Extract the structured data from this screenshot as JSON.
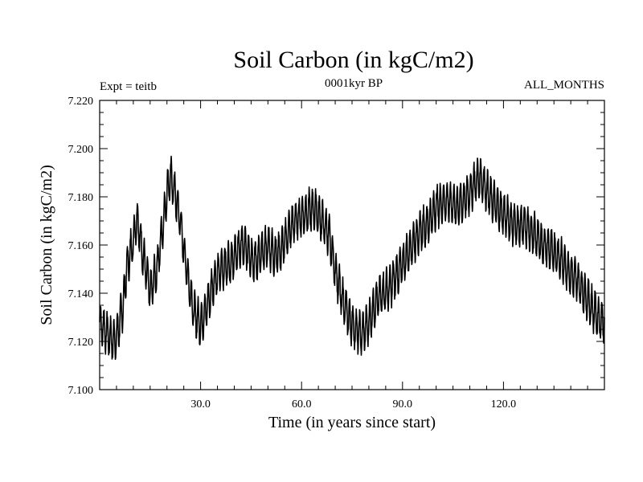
{
  "chart_data": {
    "type": "line",
    "title": "Soil Carbon (in kgC/m2)",
    "subtitle_left": "Expt = teitb",
    "subtitle_center": "0001kyr BP",
    "subtitle_right": "ALL_MONTHS",
    "xlabel": "Time (in years since start)",
    "ylabel": "Soil Carbon (in kgC/m2)",
    "xlim": [
      0,
      150
    ],
    "ylim": [
      7.1,
      7.22
    ],
    "xticks": [
      30,
      60,
      90,
      120
    ],
    "xtick_labels": [
      "30.0",
      "60.0",
      "90.0",
      "120.0"
    ],
    "yticks": [
      7.1,
      7.12,
      7.14,
      7.16,
      7.18,
      7.2,
      7.22
    ],
    "ytick_labels": [
      "7.100",
      "7.120",
      "7.140",
      "7.160",
      "7.180",
      "7.200",
      "7.220"
    ],
    "series": [
      {
        "name": "Soil Carbon",
        "color": "#000000",
        "trend_x": [
          0,
          2,
          4,
          5,
          7,
          8,
          10,
          11,
          13,
          14,
          15,
          17,
          19,
          20,
          21,
          22,
          24,
          25,
          27,
          28,
          30,
          32,
          34,
          36,
          38,
          40,
          42,
          44,
          46,
          48,
          50,
          52,
          54,
          56,
          58,
          60,
          62,
          64,
          66,
          68,
          70,
          72,
          74,
          76,
          78,
          80,
          82,
          84,
          86,
          88,
          90,
          92,
          94,
          96,
          98,
          100,
          102,
          104,
          106,
          108,
          110,
          112,
          113,
          114,
          116,
          118,
          120,
          122,
          124,
          126,
          128,
          130,
          132,
          134,
          136,
          138,
          140,
          142,
          144,
          146,
          148,
          150
        ],
        "trend_y": [
          7.128,
          7.124,
          7.12,
          7.122,
          7.135,
          7.15,
          7.162,
          7.172,
          7.155,
          7.148,
          7.14,
          7.15,
          7.17,
          7.182,
          7.188,
          7.184,
          7.17,
          7.158,
          7.14,
          7.132,
          7.127,
          7.135,
          7.145,
          7.15,
          7.152,
          7.155,
          7.16,
          7.158,
          7.153,
          7.156,
          7.16,
          7.156,
          7.158,
          7.165,
          7.17,
          7.172,
          7.174,
          7.175,
          7.17,
          7.165,
          7.15,
          7.138,
          7.13,
          7.125,
          7.123,
          7.128,
          7.136,
          7.14,
          7.142,
          7.147,
          7.152,
          7.158,
          7.163,
          7.167,
          7.17,
          7.176,
          7.178,
          7.178,
          7.176,
          7.178,
          7.182,
          7.187,
          7.188,
          7.186,
          7.18,
          7.176,
          7.173,
          7.17,
          7.168,
          7.168,
          7.166,
          7.163,
          7.16,
          7.158,
          7.156,
          7.152,
          7.148,
          7.145,
          7.14,
          7.135,
          7.13,
          7.128
        ],
        "oscillation_period_years": 1.0,
        "oscillation_amplitude": 0.008
      }
    ]
  }
}
